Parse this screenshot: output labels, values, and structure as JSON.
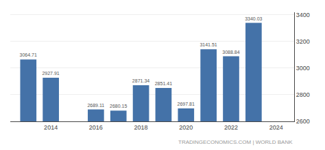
{
  "chart_data": {
    "type": "bar",
    "x": [
      2013,
      2014,
      2016,
      2017,
      2018,
      2019,
      2020,
      2021,
      2022,
      2023
    ],
    "values": [
      3064.71,
      2927.91,
      2689.11,
      2680.15,
      2871.34,
      2851.41,
      2697.81,
      3141.51,
      3088.84,
      3340.03
    ],
    "color": "#4472a8",
    "xlim": [
      2012.2,
      2024.8
    ],
    "xticks": [
      2014,
      2016,
      2018,
      2020,
      2022,
      2024
    ],
    "ylim": [
      2600,
      3420
    ],
    "yticks": [
      2600,
      2800,
      3000,
      3200,
      3400
    ],
    "grid": true,
    "data_labels": true,
    "annotations": [
      "TRADINGECONOMICS.COM | WORLD BANK"
    ]
  }
}
